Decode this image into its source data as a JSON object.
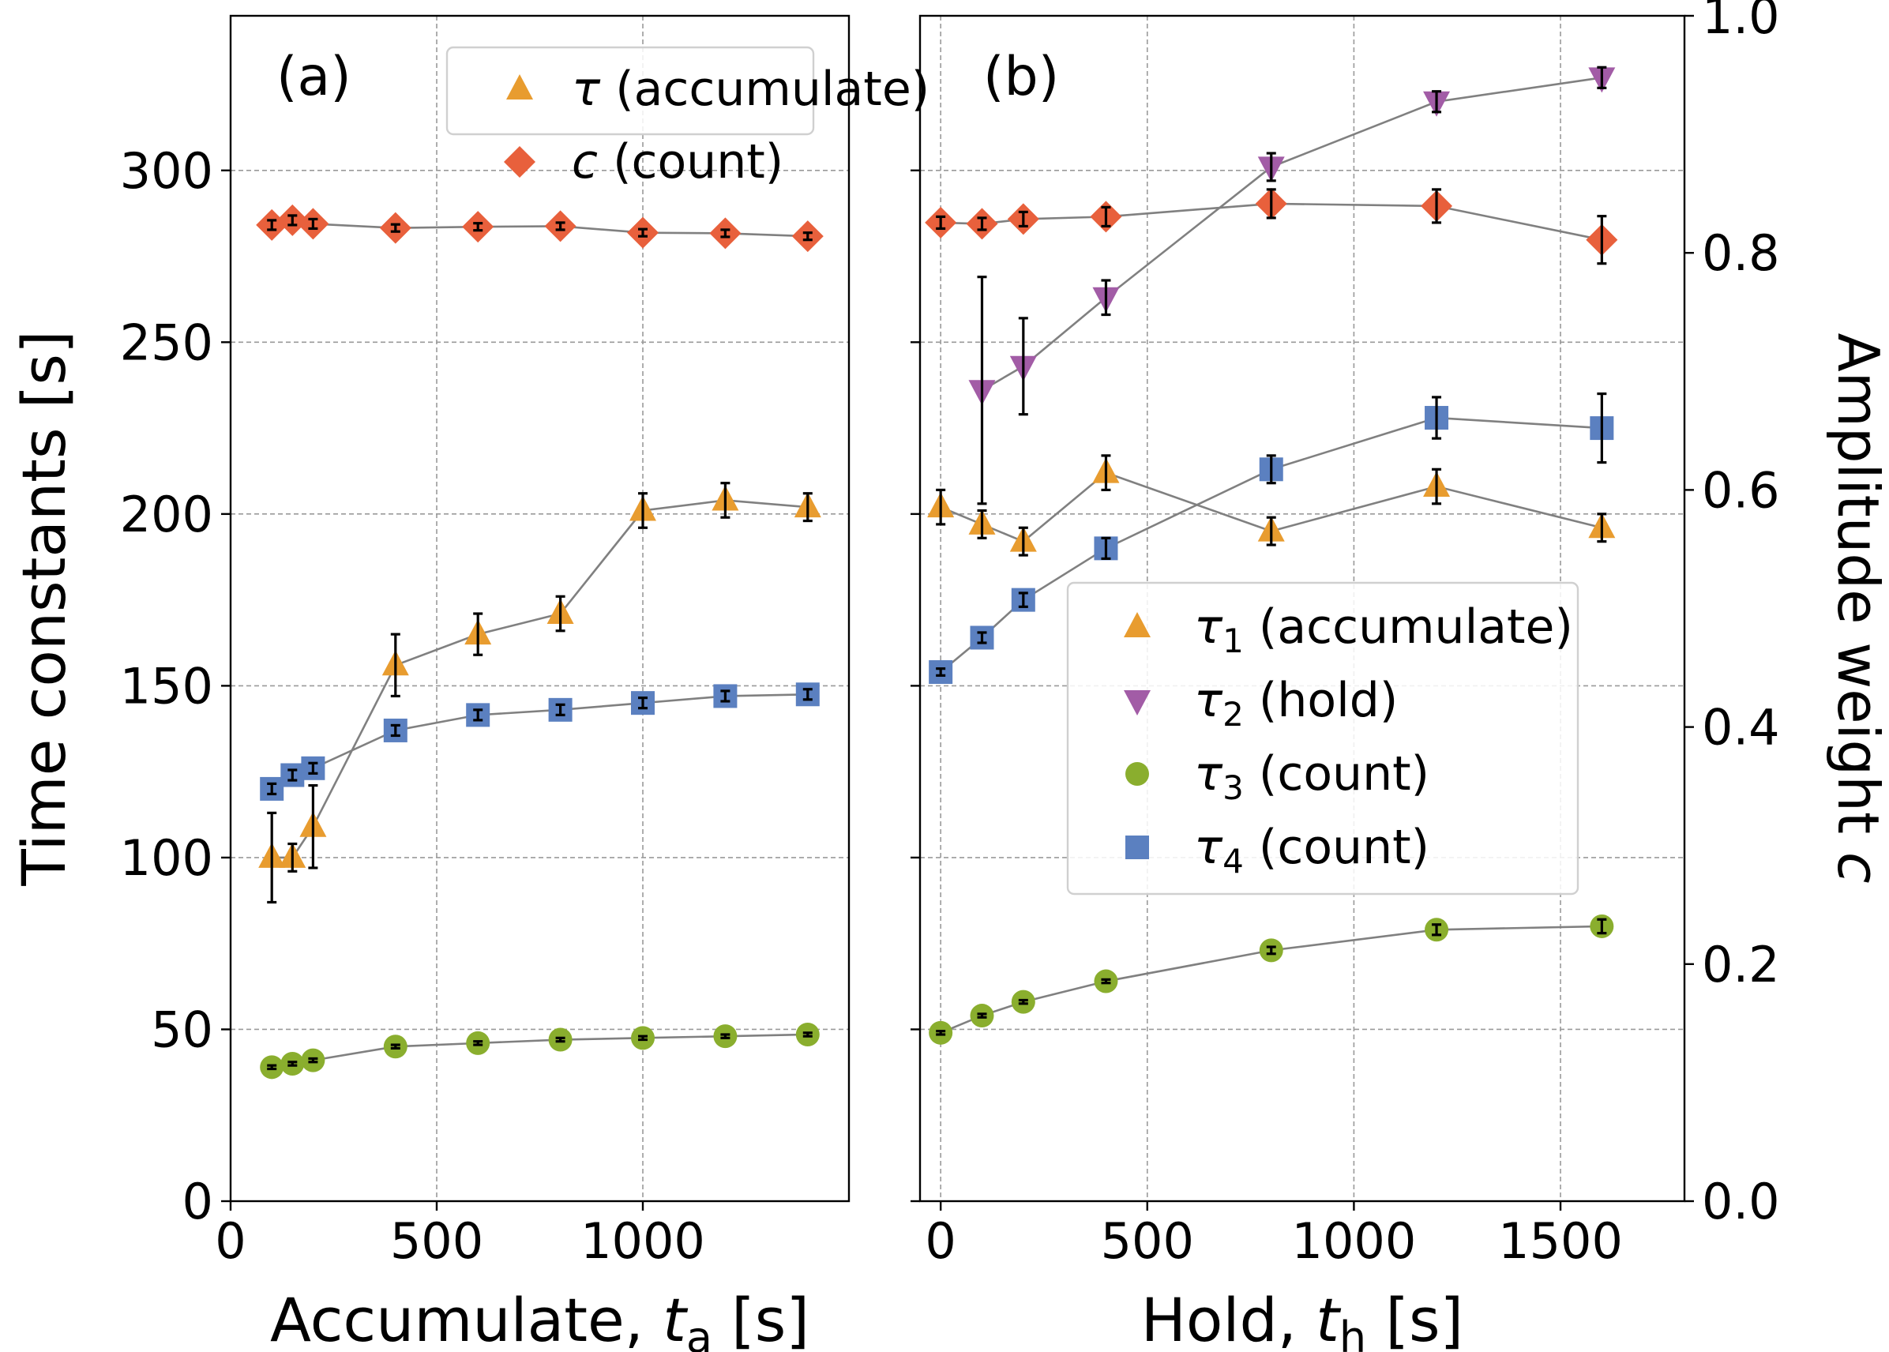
{
  "colors": {
    "c": "#e8603c",
    "tau1": "#e89c2f",
    "tau2": "#a25ca6",
    "tau3": "#8aae2e",
    "tau4": "#5b80c0",
    "connector": "#808080",
    "grid": "#9a9a9a"
  },
  "chart_data": [
    {
      "type": "scatter",
      "panel_label": "(a)",
      "xlabel": "Accumulate, t",
      "xlabel_sub": "a",
      "xlabel_unit": " [s]",
      "ylabel": "Time constants [s]",
      "xlim": [
        0,
        1500
      ],
      "ylim": [
        0,
        345
      ],
      "y2lim": [
        0,
        1.0
      ],
      "xticks": [
        0,
        500,
        1000
      ],
      "yticks": [
        0,
        50,
        100,
        150,
        200,
        250,
        300
      ],
      "grid": true,
      "legend_position": "top-right",
      "series": [
        {
          "key": "tau1",
          "legend_sym": "τ",
          "legend_sub": "1",
          "legend_text": " (accumulate)",
          "marker": "triangle-up",
          "axis": "left",
          "x": [
            100,
            150,
            200,
            400,
            600,
            800,
            1000,
            1200,
            1400
          ],
          "y": [
            100,
            100,
            109,
            156,
            165,
            171,
            201,
            204,
            202
          ],
          "err": [
            13,
            4,
            12,
            9,
            6,
            5,
            5,
            5,
            4
          ]
        },
        {
          "key": "tau3",
          "marker": "circle",
          "axis": "left",
          "x": [
            100,
            150,
            200,
            400,
            600,
            800,
            1000,
            1200,
            1400
          ],
          "y": [
            39,
            40,
            41,
            45,
            46,
            47,
            47.5,
            48,
            48.5
          ],
          "err": [
            0.5,
            0.5,
            0.5,
            0.5,
            0.5,
            0.5,
            0.5,
            0.5,
            0.5
          ]
        },
        {
          "key": "tau4",
          "marker": "square",
          "axis": "left",
          "x": [
            100,
            150,
            200,
            400,
            600,
            800,
            1000,
            1200,
            1400
          ],
          "y": [
            120,
            124,
            126,
            137,
            141.5,
            143,
            145,
            147,
            147.5
          ],
          "err": [
            1.5,
            1.5,
            1.5,
            1.5,
            1.5,
            1.5,
            1.5,
            1.5,
            1.5
          ]
        },
        {
          "key": "c",
          "legend_sym": "c",
          "legend_text": " (count)",
          "marker": "diamond",
          "axis": "right",
          "x": [
            100,
            150,
            200,
            400,
            600,
            800,
            1000,
            1200,
            1400
          ],
          "y": [
            0.8235,
            0.8275,
            0.8245,
            0.821,
            0.822,
            0.8225,
            0.817,
            0.8165,
            0.814
          ],
          "err": [
            0.004,
            0.004,
            0.004,
            0.003,
            0.003,
            0.003,
            0.003,
            0.003,
            0.003
          ]
        }
      ]
    },
    {
      "type": "scatter",
      "panel_label": "(b)",
      "xlabel": "Hold, t",
      "xlabel_sub": "h",
      "xlabel_unit": " [s]",
      "y2label": "Amplitude weight c",
      "xlim": [
        -50,
        1800
      ],
      "ylim": [
        0,
        345
      ],
      "y2lim": [
        0,
        1.0
      ],
      "xticks": [
        0,
        500,
        1000,
        1500
      ],
      "y2ticks": [
        0.0,
        0.2,
        0.4,
        0.6,
        0.8,
        1.0
      ],
      "grid": true,
      "legend_position": "center-right",
      "series": [
        {
          "key": "tau1",
          "legend_sym": "τ",
          "legend_sub": "1",
          "legend_text": " (accumulate)",
          "marker": "triangle-up",
          "axis": "left",
          "x": [
            0,
            100,
            200,
            400,
            800,
            1200,
            1600
          ],
          "y": [
            202,
            197,
            192,
            212,
            195,
            208,
            196
          ],
          "err": [
            5,
            4,
            4,
            5,
            4,
            5,
            4
          ]
        },
        {
          "key": "tau2",
          "legend_sym": "τ",
          "legend_sub": "2",
          "legend_text": " (hold)",
          "marker": "triangle-down",
          "axis": "left",
          "x": [
            100,
            200,
            400,
            800,
            1200,
            1600
          ],
          "y": [
            236,
            243,
            263,
            301,
            320,
            327
          ],
          "err": [
            33,
            14,
            5,
            4,
            3,
            3
          ]
        },
        {
          "key": "tau3",
          "legend_sym": "τ",
          "legend_sub": "3",
          "legend_text": " (count)",
          "marker": "circle",
          "axis": "left",
          "x": [
            0,
            100,
            200,
            400,
            800,
            1200,
            1600
          ],
          "y": [
            49,
            54,
            58,
            64,
            73,
            79,
            80
          ],
          "err": [
            0.5,
            0.5,
            0.5,
            0.5,
            1,
            1.5,
            2
          ]
        },
        {
          "key": "tau4",
          "legend_sym": "τ",
          "legend_sub": "4",
          "legend_text": " (count)",
          "marker": "square",
          "axis": "left",
          "x": [
            0,
            100,
            200,
            400,
            800,
            1200,
            1600
          ],
          "y": [
            154,
            164,
            175,
            190,
            213,
            228,
            225
          ],
          "err": [
            1,
            1.5,
            2,
            3,
            4,
            6,
            10
          ]
        },
        {
          "key": "c",
          "marker": "diamond",
          "axis": "right",
          "x": [
            0,
            100,
            200,
            400,
            800,
            1200,
            1600
          ],
          "y": [
            0.8255,
            0.8245,
            0.8285,
            0.8305,
            0.8415,
            0.8395,
            0.811
          ],
          "err": [
            0.005,
            0.005,
            0.006,
            0.008,
            0.012,
            0.014,
            0.02
          ]
        }
      ]
    }
  ]
}
